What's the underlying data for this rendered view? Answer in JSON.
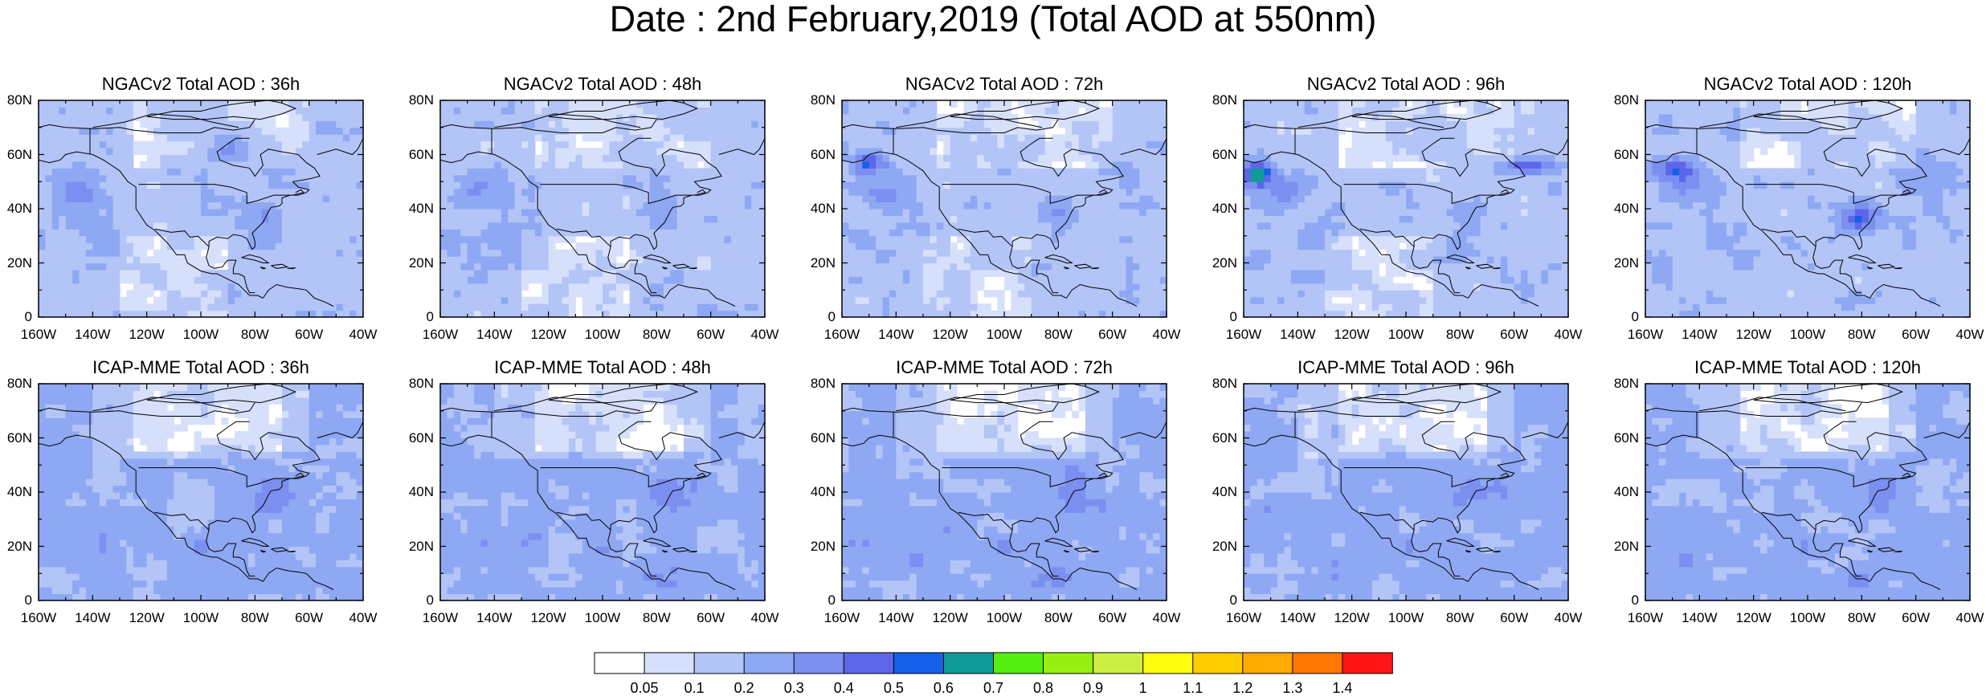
{
  "title": "Date : 2nd February,2019 (Total AOD at 550nm)",
  "panels": [
    {
      "title": "NGACv2 Total AOD : 36h"
    },
    {
      "title": "NGACv2 Total AOD : 48h"
    },
    {
      "title": "NGACv2 Total AOD : 72h"
    },
    {
      "title": "NGACv2 Total AOD : 96h"
    },
    {
      "title": "NGACv2 Total AOD : 120h"
    },
    {
      "title": "ICAP-MME Total AOD : 36h"
    },
    {
      "title": "ICAP-MME Total AOD : 48h"
    },
    {
      "title": "ICAP-MME Total AOD : 72h"
    },
    {
      "title": "ICAP-MME Total AOD : 96h"
    },
    {
      "title": "ICAP-MME Total AOD : 120h"
    }
  ],
  "axes": {
    "lon_labels": [
      "160W",
      "140W",
      "120W",
      "100W",
      "80W",
      "60W",
      "40W"
    ],
    "lat_labels": [
      "0",
      "20N",
      "40N",
      "60N",
      "80N"
    ],
    "lon_range": [
      -160,
      -40
    ],
    "lat_range": [
      0,
      80
    ]
  },
  "colorbar": {
    "colors": [
      "#ffffff",
      "#d6e0fa",
      "#b3c4f7",
      "#8ea8f3",
      "#7b8ff0",
      "#5d66e8",
      "#1560e8",
      "#119a9a",
      "#55ee11",
      "#99ee11",
      "#ccee44",
      "#ffff11",
      "#ffcc00",
      "#ffaa00",
      "#ff7700",
      "#ff1515"
    ],
    "labels": [
      "0.05",
      "0.1",
      "0.2",
      "0.3",
      "0.4",
      "0.5",
      "0.6",
      "0.7",
      "0.8",
      "0.9",
      "1",
      "1.1",
      "1.2",
      "1.3",
      "1.4"
    ]
  }
}
